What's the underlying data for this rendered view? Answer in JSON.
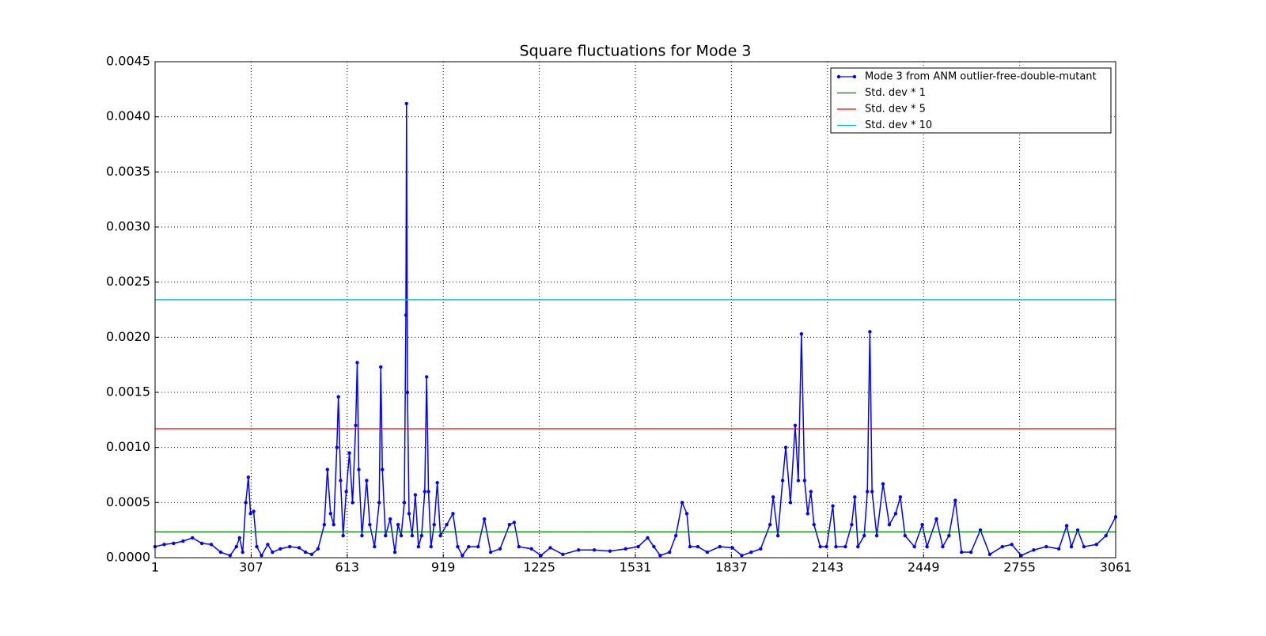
{
  "chart_data": {
    "type": "line",
    "title": "Square fluctuations for Mode 3",
    "xlim": [
      1,
      3061
    ],
    "xticks": [
      1,
      307,
      613,
      919,
      1225,
      1531,
      1837,
      2143,
      2449,
      2755,
      3061
    ],
    "ylim": [
      0,
      0.0045
    ],
    "yticks": [
      {
        "value": 0,
        "label": "0.0000"
      },
      0.0005,
      {
        "value": 0.001,
        "label": "0.0010"
      },
      0.0015,
      {
        "value": 0.002,
        "label": "0.0020"
      },
      0.0025,
      {
        "value": 0.003,
        "label": "0.0030"
      },
      0.0035,
      {
        "value": 0.004,
        "label": "0.0040"
      },
      0.0045
    ],
    "grid": true,
    "legend": "upper right",
    "series": [
      {
        "name": "Mode 3 from ANM outlier-free-double-mutant",
        "color": "#0000ff",
        "x": [
          1,
          30,
          60,
          90,
          120,
          150,
          180,
          210,
          240,
          260,
          270,
          280,
          290,
          298,
          305,
          315,
          325,
          340,
          360,
          375,
          400,
          430,
          460,
          480,
          500,
          520,
          540,
          550,
          560,
          570,
          580,
          585,
          592,
          600,
          610,
          620,
          630,
          640,
          645,
          650,
          660,
          675,
          685,
          700,
          715,
          720,
          725,
          735,
          750,
          765,
          775,
          785,
          795,
          800,
          802,
          805,
          810,
          820,
          830,
          840,
          850,
          860,
          866,
          872,
          880,
          890,
          900,
          910,
          930,
          950,
          965,
          980,
          1000,
          1030,
          1050,
          1070,
          1100,
          1130,
          1145,
          1160,
          1200,
          1230,
          1260,
          1300,
          1350,
          1400,
          1450,
          1500,
          1540,
          1570,
          1590,
          1610,
          1640,
          1660,
          1680,
          1695,
          1705,
          1730,
          1760,
          1800,
          1840,
          1870,
          1900,
          1930,
          1960,
          1970,
          1985,
          2000,
          2010,
          2025,
          2040,
          2050,
          2060,
          2070,
          2080,
          2090,
          2100,
          2120,
          2140,
          2160,
          2170,
          2200,
          2220,
          2230,
          2240,
          2260,
          2270,
          2278,
          2285,
          2300,
          2320,
          2340,
          2360,
          2375,
          2390,
          2420,
          2445,
          2460,
          2490,
          2510,
          2530,
          2550,
          2570,
          2600,
          2630,
          2660,
          2700,
          2730,
          2760,
          2800,
          2840,
          2880,
          2905,
          2920,
          2940,
          2960,
          3000,
          3030,
          3061
        ],
        "values": [
          0.0001,
          0.00012,
          0.00013,
          0.00015,
          0.00018,
          0.00013,
          0.00012,
          5e-05,
          2e-05,
          0.0001,
          0.00018,
          5e-05,
          0.0005,
          0.00073,
          0.0004,
          0.00042,
          0.0001,
          2e-05,
          0.00012,
          5e-05,
          8e-05,
          0.0001,
          9e-05,
          5e-05,
          3e-05,
          8e-05,
          0.0003,
          0.0008,
          0.0004,
          0.0003,
          0.001,
          0.00146,
          0.0007,
          0.0002,
          0.0006,
          0.00095,
          0.0005,
          0.0012,
          0.00177,
          0.0008,
          0.0002,
          0.0007,
          0.0003,
          0.0001,
          0.0005,
          0.00173,
          0.0008,
          0.0002,
          0.00035,
          5e-05,
          0.0003,
          0.0002,
          0.0005,
          0.0022,
          0.00412,
          0.0015,
          0.0004,
          0.0002,
          0.00057,
          0.0001,
          0.0002,
          0.0006,
          0.00164,
          0.0006,
          0.0001,
          0.0003,
          0.00068,
          0.0002,
          0.0003,
          0.0004,
          0.0001,
          2e-05,
          0.0001,
          0.0001,
          0.00035,
          5e-05,
          8e-05,
          0.0003,
          0.00032,
          0.0001,
          8e-05,
          2e-05,
          9e-05,
          3e-05,
          7e-05,
          7e-05,
          6e-05,
          8e-05,
          0.0001,
          0.00018,
          0.0001,
          2e-05,
          5e-05,
          0.0002,
          0.0005,
          0.0004,
          0.0001,
          0.0001,
          5e-05,
          0.0001,
          9e-05,
          2e-05,
          5e-05,
          8e-05,
          0.0003,
          0.00055,
          0.0002,
          0.0007,
          0.001,
          0.0005,
          0.0012,
          0.0007,
          0.00203,
          0.0007,
          0.0004,
          0.0006,
          0.0003,
          0.0001,
          0.0001,
          0.00047,
          0.0001,
          0.0001,
          0.0003,
          0.00055,
          0.0001,
          0.0002,
          0.0006,
          0.00205,
          0.0006,
          0.0002,
          0.00067,
          0.0003,
          0.0004,
          0.00055,
          0.0002,
          0.0001,
          0.0003,
          0.0001,
          0.00035,
          0.0001,
          0.0002,
          0.00052,
          5e-05,
          5e-05,
          0.00025,
          3e-05,
          0.0001,
          0.00012,
          2e-05,
          7e-05,
          0.0001,
          8e-05,
          0.00029,
          0.0001,
          0.00025,
          0.0001,
          0.00012,
          0.0002,
          0.00037
        ]
      },
      {
        "name": "Std. dev * 1",
        "color": "#008000",
        "y": 0.000234
      },
      {
        "name": "Std. dev * 5",
        "color": "#ff0000",
        "y": 0.00117
      },
      {
        "name": "Std. dev * 10",
        "color": "#00bfbf",
        "y": 0.00234
      }
    ]
  }
}
